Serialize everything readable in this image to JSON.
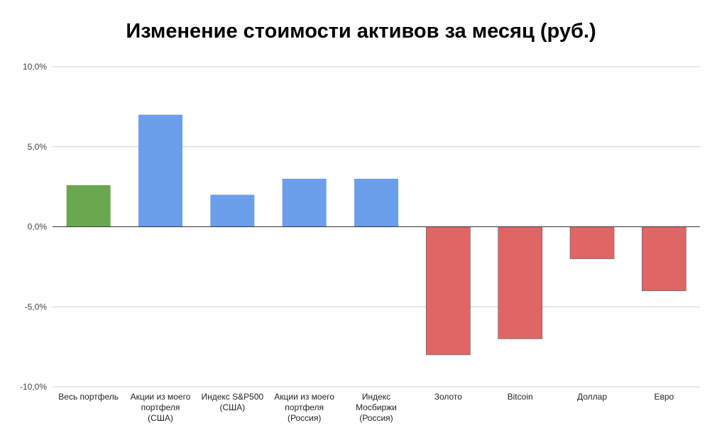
{
  "chart_data": {
    "type": "bar",
    "title": "Изменение стоимости активов за месяц (руб.)",
    "xlabel": "",
    "ylabel": "",
    "ylim": [
      -10,
      10
    ],
    "yticks": [
      10,
      5,
      0,
      -5,
      -10
    ],
    "ytick_labels": [
      "10,0%",
      "5,0%",
      "0,0%",
      "-5,0%",
      "-10,0%"
    ],
    "grid": true,
    "legend": "none",
    "categories": [
      [
        "Весь портфель"
      ],
      [
        "Акции из моего",
        "портфеля",
        "(США)"
      ],
      [
        "Индекс S&P500",
        "(США)"
      ],
      [
        "Акции из моего",
        "портфеля",
        "(Россия)"
      ],
      [
        "Индекс",
        "Мосбиржи",
        "(Россия)"
      ],
      [
        "Золото"
      ],
      [
        "Bitcoin"
      ],
      [
        "Доллар"
      ],
      [
        "Евро"
      ]
    ],
    "values": [
      2.6,
      7.0,
      2.0,
      3.0,
      3.0,
      -8.0,
      -7.0,
      -2.0,
      -4.0
    ],
    "colors": [
      "#6aa84f",
      "#6d9eeb",
      "#6d9eeb",
      "#6d9eeb",
      "#6d9eeb",
      "#e06666",
      "#e06666",
      "#e06666",
      "#e06666"
    ]
  }
}
